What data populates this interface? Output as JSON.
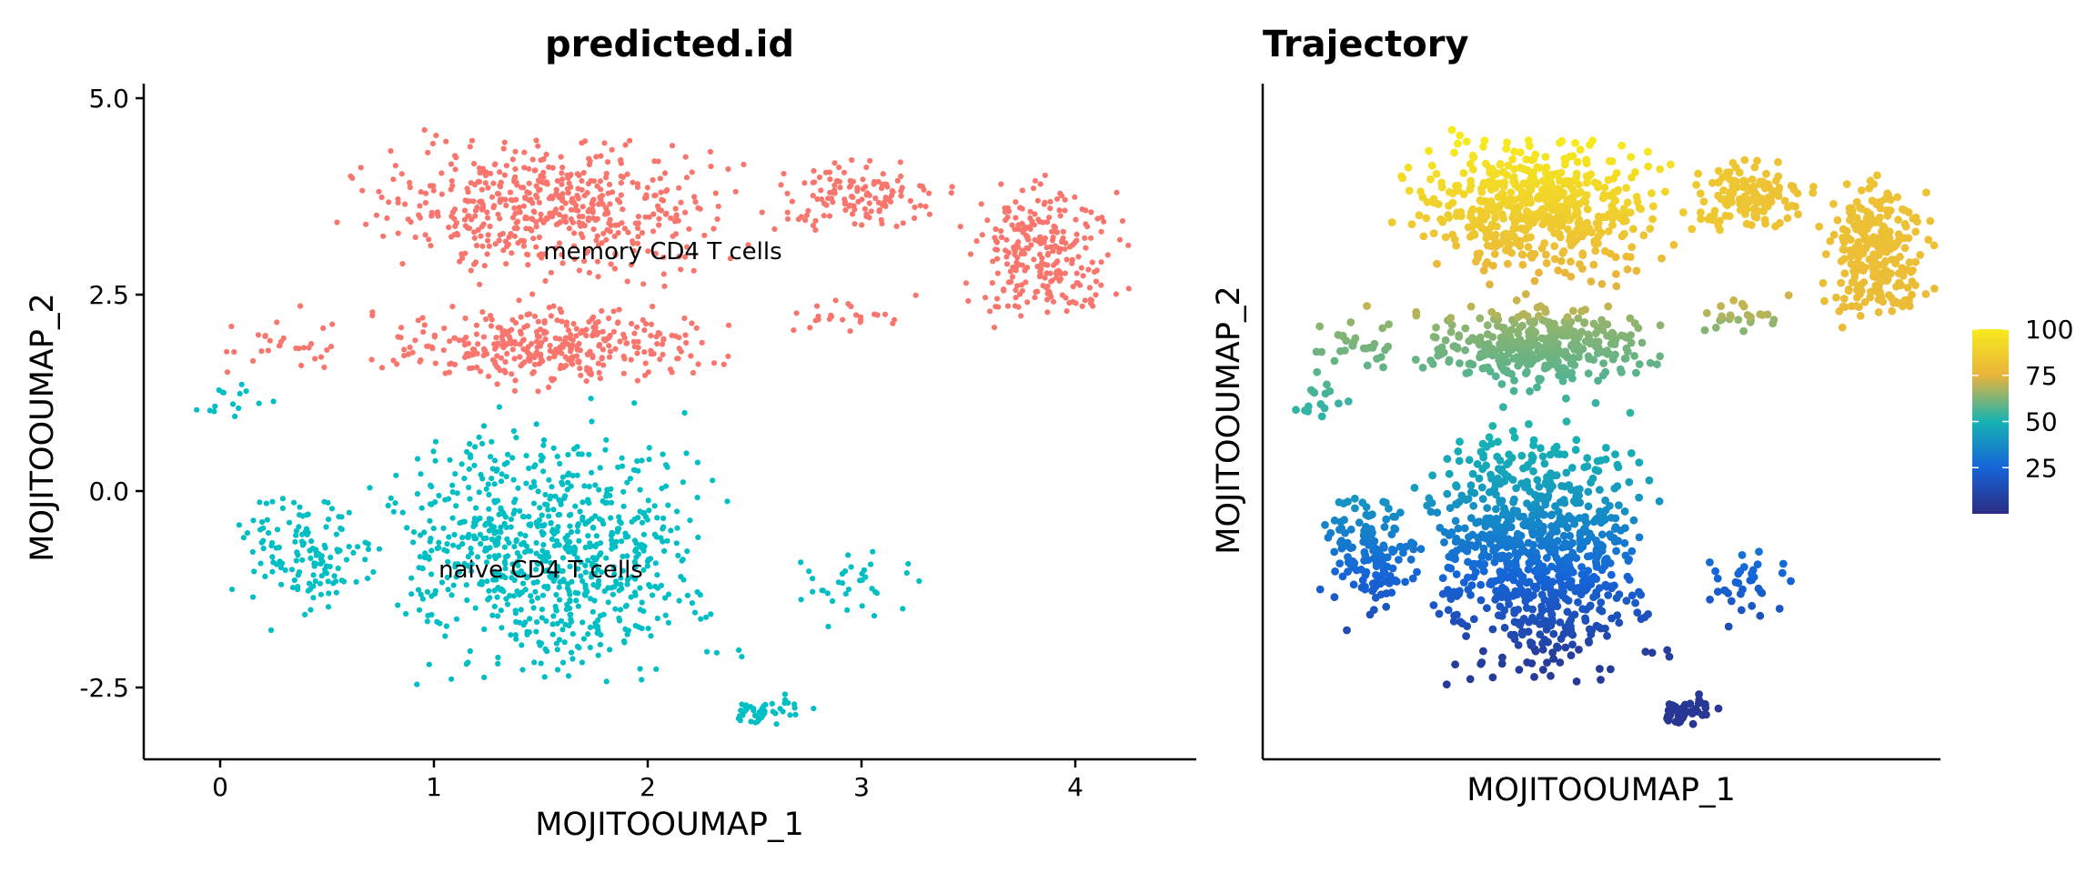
{
  "chart_data": [
    {
      "type": "scatter",
      "title": "predicted.id",
      "xlabel": "MOJITOOUMAP_1",
      "ylabel": "MOJITOOUMAP_2",
      "xlim": [
        -0.35,
        4.55
      ],
      "ylim": [
        -3.4,
        5.15
      ],
      "x_ticks": [
        0,
        1,
        2,
        3,
        4
      ],
      "x_tick_labels": [
        "0",
        "1",
        "2",
        "3",
        "4"
      ],
      "y_ticks": [
        5.0,
        2.5,
        0.0,
        -2.5
      ],
      "y_tick_labels": [
        "5.0",
        "2.5",
        "0.0",
        "-2.5"
      ],
      "grid": false,
      "legend": "none",
      "series": [
        {
          "name": "memory CD4 T cells",
          "color": "#F8766D",
          "label_at": [
            2.07,
            2.95
          ],
          "regions": [
            {
              "x": [
                0.45,
                2.6
              ],
              "y": [
                2.5,
                4.7
              ],
              "n": 520
            },
            {
              "x": [
                0.6,
                2.5
              ],
              "y": [
                1.2,
                2.5
              ],
              "n": 360
            },
            {
              "x": [
                2.5,
                3.5
              ],
              "y": [
                3.2,
                4.3
              ],
              "n": 130
            },
            {
              "x": [
                3.4,
                4.3
              ],
              "y": [
                1.9,
                4.2
              ],
              "n": 260
            },
            {
              "x": [
                -0.15,
                0.6
              ],
              "y": [
                1.4,
                2.4
              ],
              "n": 30
            },
            {
              "x": [
                2.6,
                3.3
              ],
              "y": [
                1.9,
                2.6
              ],
              "n": 25
            }
          ]
        },
        {
          "name": "naive CD4 T cells",
          "color": "#00BFC4",
          "label_at": [
            1.5,
            -1.1
          ],
          "regions": [
            {
              "x": [
                0.6,
                2.5
              ],
              "y": [
                -2.8,
                1.3
              ],
              "n": 800
            },
            {
              "x": [
                0.0,
                0.8
              ],
              "y": [
                -1.8,
                0.2
              ],
              "n": 140
            },
            {
              "x": [
                2.3,
                2.8
              ],
              "y": [
                -3.05,
                -2.5
              ],
              "n": 45
            },
            {
              "x": [
                2.6,
                3.3
              ],
              "y": [
                -1.9,
                -0.6
              ],
              "n": 35
            },
            {
              "x": [
                -0.15,
                0.3
              ],
              "y": [
                0.8,
                1.5
              ],
              "n": 15
            }
          ]
        }
      ]
    },
    {
      "type": "scatter",
      "title": "Trajectory",
      "xlabel": "MOJITOOUMAP_1",
      "ylabel": "MOJITOOUMAP_2",
      "xlim": [
        -0.35,
        4.55
      ],
      "ylim": [
        -3.4,
        5.15
      ],
      "x_ticks_shown": false,
      "y_ticks_shown": false,
      "grid": false,
      "legend": "right",
      "colorbar": {
        "title": "",
        "range": [
          0,
          100
        ],
        "ticks": [
          25,
          50,
          75,
          100
        ],
        "tick_labels": [
          "25",
          "50",
          "75",
          "100"
        ],
        "colors": [
          "#2C2C84",
          "#1565D8",
          "#16B3B3",
          "#E9B43C",
          "#F7EB1D"
        ]
      },
      "value_trend": "pseudotime increases from the lower cluster (~0) to the upper-left cluster (~100)"
    }
  ]
}
